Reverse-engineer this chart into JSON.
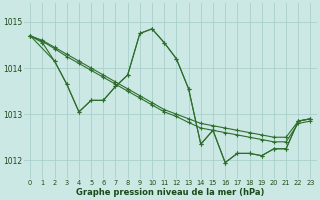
{
  "line_color": "#2d6e2d",
  "bg_color": "#cce8e4",
  "grid_color": "#aacfcb",
  "xlabel": "Graphe pression niveau de la mer (hPa)",
  "xlabel_color": "#1a4a1a",
  "ylabel_ticks": [
    1012,
    1013,
    1014,
    1015
  ],
  "ylim": [
    1011.6,
    1015.4
  ],
  "xlim": [
    -0.5,
    23.5
  ],
  "series": [
    {
      "x": [
        0,
        1,
        2,
        3,
        4,
        5,
        6,
        7,
        8,
        9,
        10,
        11,
        12,
        13,
        14,
        15,
        16,
        17,
        18,
        19,
        20,
        21,
        22,
        23
      ],
      "y": [
        1014.7,
        1014.6,
        1014.45,
        1014.3,
        1014.15,
        1014.0,
        1013.85,
        1013.7,
        1013.55,
        1013.4,
        1013.25,
        1013.1,
        1013.0,
        1012.9,
        1012.8,
        1012.75,
        1012.7,
        1012.65,
        1012.6,
        1012.55,
        1012.5,
        1012.5,
        1012.85,
        1012.9
      ]
    },
    {
      "x": [
        0,
        1,
        2,
        3,
        4,
        5,
        6,
        7,
        8,
        9,
        10,
        11,
        12,
        13,
        14,
        15,
        16,
        17,
        18,
        19,
        20,
        21,
        22,
        23
      ],
      "y": [
        1014.7,
        1014.58,
        1014.42,
        1014.25,
        1014.1,
        1013.95,
        1013.8,
        1013.65,
        1013.5,
        1013.35,
        1013.2,
        1013.05,
        1012.95,
        1012.82,
        1012.7,
        1012.65,
        1012.6,
        1012.55,
        1012.5,
        1012.45,
        1012.4,
        1012.4,
        1012.8,
        1012.85
      ]
    },
    {
      "x": [
        0,
        1,
        2,
        3,
        4,
        5,
        6,
        7,
        8,
        9,
        10,
        11,
        12,
        13,
        14,
        15,
        16,
        17,
        18,
        19,
        20,
        21,
        22,
        23
      ],
      "y": [
        1014.7,
        1014.55,
        1014.15,
        1013.65,
        1013.05,
        1013.3,
        1013.3,
        1013.6,
        1013.85,
        1014.75,
        1014.85,
        1014.55,
        1014.2,
        1013.55,
        1012.35,
        1012.65,
        1011.95,
        1012.15,
        1012.15,
        1012.1,
        1012.25,
        1012.25,
        1012.85,
        1012.9
      ]
    },
    {
      "x": [
        0,
        2,
        3,
        4,
        5,
        6,
        7,
        8,
        9,
        10,
        11,
        12,
        13,
        14,
        15,
        16,
        17,
        18,
        19,
        20,
        21,
        22,
        23
      ],
      "y": [
        1014.7,
        1014.15,
        1013.65,
        1013.05,
        1013.3,
        1013.3,
        1013.6,
        1013.85,
        1014.75,
        1014.85,
        1014.55,
        1014.2,
        1013.55,
        1012.35,
        1012.65,
        1011.95,
        1012.15,
        1012.15,
        1012.1,
        1012.25,
        1012.25,
        1012.85,
        1012.9
      ]
    }
  ]
}
